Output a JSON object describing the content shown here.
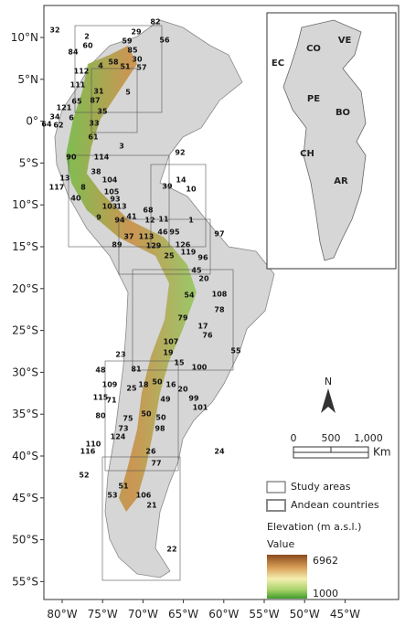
{
  "map": {
    "x_axis_labels": [
      "80°W",
      "75°W",
      "70°W",
      "65°W",
      "60°W",
      "55°W",
      "50°W",
      "45°W"
    ],
    "y_axis_labels": [
      "10°N",
      "5°N",
      "0°",
      "5°S",
      "10°S",
      "15°S",
      "20°S",
      "25°S",
      "30°S",
      "35°S",
      "40°S",
      "45°S",
      "50°S",
      "55°S"
    ],
    "inset_countries": [
      "VE",
      "CO",
      "EC",
      "PE",
      "BO",
      "CH",
      "AR"
    ],
    "study_area_labels": [
      "82",
      "32",
      "2",
      "29",
      "60",
      "59",
      "56",
      "84",
      "85",
      "30",
      "58",
      "4",
      "51",
      "57",
      "112",
      "111",
      "31",
      "5",
      "87",
      "65",
      "121",
      "35",
      "34",
      "6",
      "64",
      "62",
      "33",
      "61",
      "3",
      "92",
      "90",
      "114",
      "38",
      "13",
      "104",
      "117",
      "8",
      "39",
      "14",
      "10",
      "105",
      "93",
      "40",
      "103",
      "13",
      "68",
      "9",
      "94",
      "41",
      "12",
      "11",
      "1",
      "46",
      "95",
      "97",
      "37",
      "113",
      "89",
      "126",
      "129",
      "119",
      "25",
      "96",
      "45",
      "20",
      "54",
      "108",
      "78",
      "79",
      "17",
      "76",
      "107",
      "55",
      "19",
      "15",
      "100",
      "23",
      "48",
      "81",
      "109",
      "25",
      "18",
      "50",
      "16",
      "20",
      "99",
      "115",
      "71",
      "49",
      "101",
      "80",
      "75",
      "50",
      "50",
      "73",
      "124",
      "98",
      "110",
      "116",
      "26",
      "24",
      "77",
      "52",
      "51",
      "53",
      "106",
      "21",
      "22"
    ],
    "north_label": "N",
    "scale": {
      "labels": [
        "0",
        "500",
        "1,000"
      ],
      "unit": "Km"
    },
    "legend": {
      "study_areas": "Study areas",
      "andean_countries": "Andean countries",
      "elevation_title": "Elevation (m a.s.l.)",
      "value_title": "Value",
      "max_label": "6962",
      "min_label": "1000"
    }
  }
}
